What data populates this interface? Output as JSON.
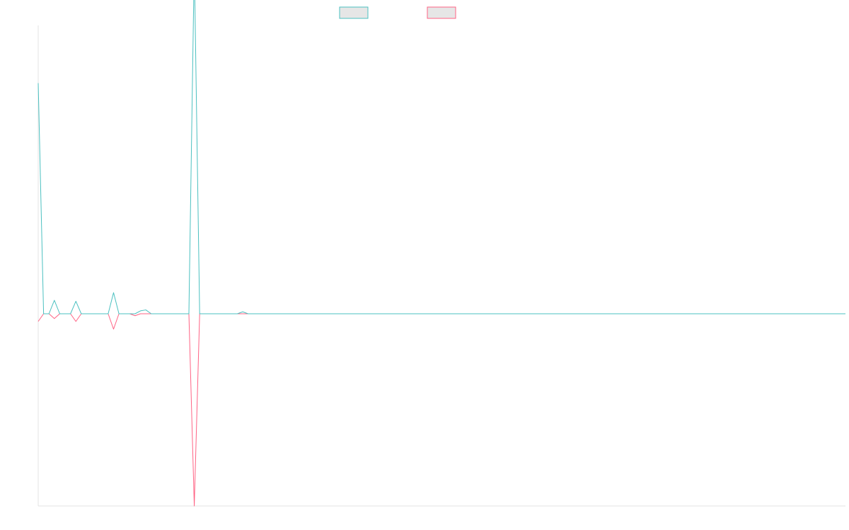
{
  "chart_data": {
    "type": "line",
    "title": "",
    "xlabel": "",
    "ylabel": "",
    "grid": false,
    "legend_position": "top-center",
    "x": [
      0,
      1,
      2,
      3,
      4,
      5,
      6,
      7,
      8,
      9,
      10,
      11,
      12,
      13,
      14,
      15,
      16,
      17,
      18,
      19,
      20,
      21,
      22,
      23,
      24,
      25,
      26,
      27,
      28,
      29,
      30,
      31,
      32,
      33,
      34,
      35,
      36,
      37,
      38,
      39,
      40,
      41,
      42,
      43,
      44,
      45,
      46,
      47,
      48,
      49,
      50,
      51,
      52,
      53,
      54,
      55,
      56,
      57,
      58,
      59,
      60,
      61,
      62,
      63,
      64,
      65,
      66,
      67,
      68,
      69,
      70,
      71,
      72,
      73,
      74,
      75,
      76,
      77,
      78,
      79,
      80,
      81,
      82,
      83,
      84,
      85,
      86,
      87,
      88,
      89,
      90,
      91,
      92,
      93,
      94,
      95,
      96,
      97,
      98,
      99,
      100,
      101,
      102,
      103,
      104,
      105,
      106,
      107,
      108,
      109,
      110,
      111,
      112,
      113,
      114,
      115,
      116,
      117,
      118,
      119,
      120,
      121,
      122,
      123,
      124,
      125,
      126,
      127,
      128,
      129,
      130,
      131,
      132,
      133,
      134,
      135,
      136,
      137,
      138,
      139,
      140,
      141,
      142,
      143,
      144,
      145,
      146,
      147,
      148,
      149,
      150
    ],
    "ylim": [
      -100,
      150
    ],
    "series": [
      {
        "color": "#4bc0c0",
        "values": [
          120,
          0,
          0,
          7,
          0,
          0,
          0,
          6.5,
          0,
          0,
          0,
          0,
          0,
          0,
          11,
          0,
          0,
          0,
          0,
          1.5,
          2,
          0,
          0,
          0,
          0,
          0,
          0,
          0,
          0,
          183,
          0,
          0,
          0,
          0,
          0,
          0,
          0,
          0,
          1,
          0,
          0,
          0,
          0,
          0,
          0,
          0,
          0,
          0,
          0,
          0,
          0,
          0,
          0,
          0,
          0,
          0,
          0,
          0,
          0,
          0,
          0,
          0,
          0,
          0,
          0,
          0,
          0,
          0,
          0,
          0,
          0,
          0,
          0,
          0,
          0,
          0,
          0,
          0,
          0,
          0,
          0,
          0,
          0,
          0,
          0,
          0,
          0,
          0,
          0,
          0,
          0,
          0,
          0,
          0,
          0,
          0,
          0,
          0,
          0,
          0,
          0,
          0,
          0,
          0,
          0,
          0,
          0,
          0,
          0,
          0,
          0,
          0,
          0,
          0,
          0,
          0,
          0,
          0,
          0,
          0,
          0,
          0,
          0,
          0,
          0,
          0,
          0,
          0,
          0,
          0,
          0,
          0,
          0,
          0,
          0,
          0,
          0,
          0,
          0,
          0,
          0,
          0,
          0,
          0,
          0,
          0,
          0,
          0,
          0,
          0,
          0
        ]
      },
      {
        "color": "#ff6384",
        "values": [
          -4,
          0,
          0,
          -2.5,
          0,
          0,
          0,
          -4,
          0,
          0,
          0,
          0,
          0,
          0,
          -8,
          0,
          0,
          0,
          -1,
          0,
          0,
          0,
          0,
          0,
          0,
          0,
          0,
          0,
          0,
          -100,
          0,
          0,
          0,
          0,
          0,
          0,
          0,
          0,
          0,
          0,
          0,
          0,
          0,
          0,
          0,
          0,
          0,
          0,
          0,
          0,
          0,
          0,
          0,
          0,
          0,
          0,
          0,
          0,
          0,
          0,
          0,
          0,
          0,
          0,
          0,
          0,
          0,
          0,
          0,
          0,
          0,
          0,
          0,
          0,
          0,
          0,
          0,
          0,
          0,
          0,
          0,
          0,
          0,
          0,
          0,
          0,
          0,
          0,
          0,
          0,
          0,
          0,
          0,
          0,
          0,
          0,
          0,
          0,
          0,
          0,
          0,
          0,
          0,
          0,
          0,
          0,
          0,
          0,
          0,
          0,
          0,
          0,
          0,
          0,
          0,
          0,
          0,
          0,
          0,
          0,
          0,
          0,
          0,
          0,
          0,
          0,
          0,
          0,
          0,
          0,
          0,
          0,
          0,
          0,
          0,
          0,
          0,
          0,
          0,
          0,
          0,
          0,
          0,
          0,
          0,
          0,
          0,
          0,
          0,
          0,
          0
        ]
      }
    ]
  }
}
